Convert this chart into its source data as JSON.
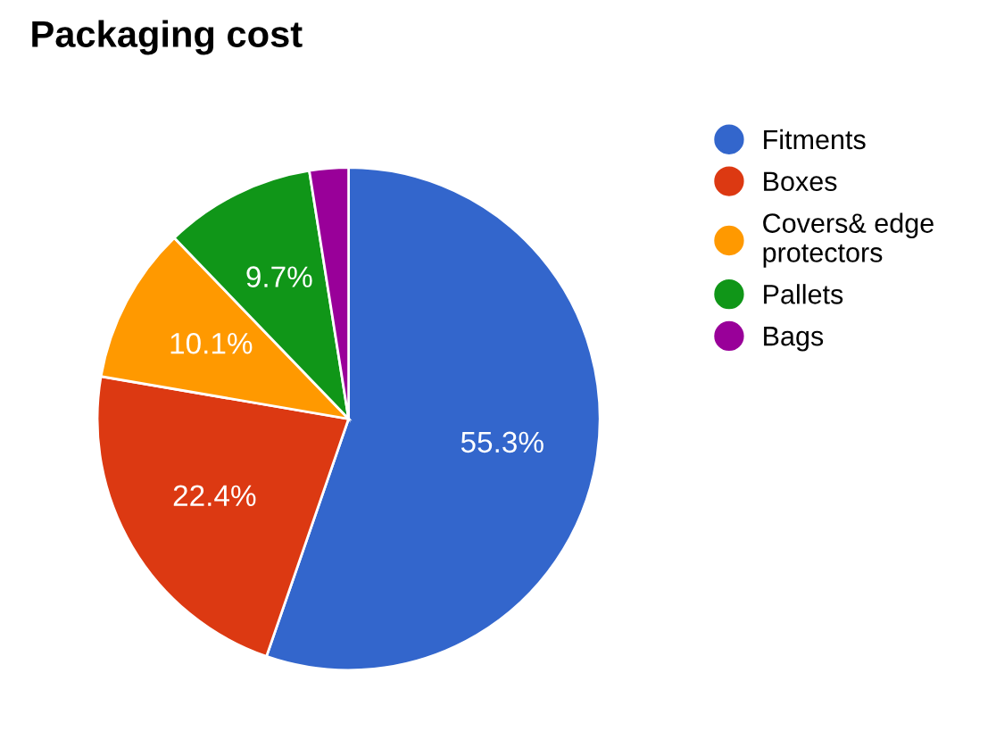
{
  "chart_data": {
    "type": "pie",
    "title": "Packaging cost",
    "categories": [
      "Fitments",
      "Boxes",
      "Covers& edge protectors",
      "Pallets",
      "Bags"
    ],
    "values": [
      55.3,
      22.4,
      10.1,
      9.7,
      2.5
    ],
    "colors": [
      "#3366cc",
      "#dc3912",
      "#ff9900",
      "#109618",
      "#990099"
    ],
    "value_labels": [
      "55.3%",
      "22.4%",
      "10.1%",
      "9.7%",
      null
    ],
    "legend": "right"
  }
}
